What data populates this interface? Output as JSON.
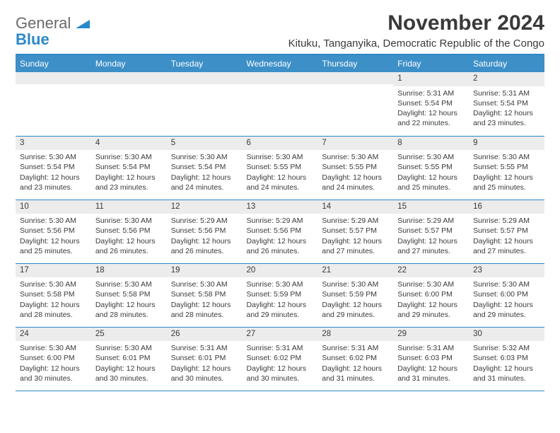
{
  "brand": {
    "word1": "General",
    "word2": "Blue"
  },
  "header": {
    "month_title": "November 2024",
    "location": "Kituku, Tanganyika, Democratic Republic of the Congo"
  },
  "colors": {
    "header_bg": "#3d8fc7",
    "accent_line": "#2a88c9",
    "daynum_bg": "#ececec",
    "text": "#3a3a3a",
    "logo_gray": "#6a6a6a",
    "logo_blue": "#2a88c9",
    "white": "#ffffff"
  },
  "weekdays": [
    "Sunday",
    "Monday",
    "Tuesday",
    "Wednesday",
    "Thursday",
    "Friday",
    "Saturday"
  ],
  "weeks": [
    [
      {
        "num": "",
        "sunrise": "",
        "sunset": "",
        "daylight": ""
      },
      {
        "num": "",
        "sunrise": "",
        "sunset": "",
        "daylight": ""
      },
      {
        "num": "",
        "sunrise": "",
        "sunset": "",
        "daylight": ""
      },
      {
        "num": "",
        "sunrise": "",
        "sunset": "",
        "daylight": ""
      },
      {
        "num": "",
        "sunrise": "",
        "sunset": "",
        "daylight": ""
      },
      {
        "num": "1",
        "sunrise": "Sunrise: 5:31 AM",
        "sunset": "Sunset: 5:54 PM",
        "daylight": "Daylight: 12 hours and 22 minutes."
      },
      {
        "num": "2",
        "sunrise": "Sunrise: 5:31 AM",
        "sunset": "Sunset: 5:54 PM",
        "daylight": "Daylight: 12 hours and 23 minutes."
      }
    ],
    [
      {
        "num": "3",
        "sunrise": "Sunrise: 5:30 AM",
        "sunset": "Sunset: 5:54 PM",
        "daylight": "Daylight: 12 hours and 23 minutes."
      },
      {
        "num": "4",
        "sunrise": "Sunrise: 5:30 AM",
        "sunset": "Sunset: 5:54 PM",
        "daylight": "Daylight: 12 hours and 23 minutes."
      },
      {
        "num": "5",
        "sunrise": "Sunrise: 5:30 AM",
        "sunset": "Sunset: 5:54 PM",
        "daylight": "Daylight: 12 hours and 24 minutes."
      },
      {
        "num": "6",
        "sunrise": "Sunrise: 5:30 AM",
        "sunset": "Sunset: 5:55 PM",
        "daylight": "Daylight: 12 hours and 24 minutes."
      },
      {
        "num": "7",
        "sunrise": "Sunrise: 5:30 AM",
        "sunset": "Sunset: 5:55 PM",
        "daylight": "Daylight: 12 hours and 24 minutes."
      },
      {
        "num": "8",
        "sunrise": "Sunrise: 5:30 AM",
        "sunset": "Sunset: 5:55 PM",
        "daylight": "Daylight: 12 hours and 25 minutes."
      },
      {
        "num": "9",
        "sunrise": "Sunrise: 5:30 AM",
        "sunset": "Sunset: 5:55 PM",
        "daylight": "Daylight: 12 hours and 25 minutes."
      }
    ],
    [
      {
        "num": "10",
        "sunrise": "Sunrise: 5:30 AM",
        "sunset": "Sunset: 5:56 PM",
        "daylight": "Daylight: 12 hours and 25 minutes."
      },
      {
        "num": "11",
        "sunrise": "Sunrise: 5:30 AM",
        "sunset": "Sunset: 5:56 PM",
        "daylight": "Daylight: 12 hours and 26 minutes."
      },
      {
        "num": "12",
        "sunrise": "Sunrise: 5:29 AM",
        "sunset": "Sunset: 5:56 PM",
        "daylight": "Daylight: 12 hours and 26 minutes."
      },
      {
        "num": "13",
        "sunrise": "Sunrise: 5:29 AM",
        "sunset": "Sunset: 5:56 PM",
        "daylight": "Daylight: 12 hours and 26 minutes."
      },
      {
        "num": "14",
        "sunrise": "Sunrise: 5:29 AM",
        "sunset": "Sunset: 5:57 PM",
        "daylight": "Daylight: 12 hours and 27 minutes."
      },
      {
        "num": "15",
        "sunrise": "Sunrise: 5:29 AM",
        "sunset": "Sunset: 5:57 PM",
        "daylight": "Daylight: 12 hours and 27 minutes."
      },
      {
        "num": "16",
        "sunrise": "Sunrise: 5:29 AM",
        "sunset": "Sunset: 5:57 PM",
        "daylight": "Daylight: 12 hours and 27 minutes."
      }
    ],
    [
      {
        "num": "17",
        "sunrise": "Sunrise: 5:30 AM",
        "sunset": "Sunset: 5:58 PM",
        "daylight": "Daylight: 12 hours and 28 minutes."
      },
      {
        "num": "18",
        "sunrise": "Sunrise: 5:30 AM",
        "sunset": "Sunset: 5:58 PM",
        "daylight": "Daylight: 12 hours and 28 minutes."
      },
      {
        "num": "19",
        "sunrise": "Sunrise: 5:30 AM",
        "sunset": "Sunset: 5:58 PM",
        "daylight": "Daylight: 12 hours and 28 minutes."
      },
      {
        "num": "20",
        "sunrise": "Sunrise: 5:30 AM",
        "sunset": "Sunset: 5:59 PM",
        "daylight": "Daylight: 12 hours and 29 minutes."
      },
      {
        "num": "21",
        "sunrise": "Sunrise: 5:30 AM",
        "sunset": "Sunset: 5:59 PM",
        "daylight": "Daylight: 12 hours and 29 minutes."
      },
      {
        "num": "22",
        "sunrise": "Sunrise: 5:30 AM",
        "sunset": "Sunset: 6:00 PM",
        "daylight": "Daylight: 12 hours and 29 minutes."
      },
      {
        "num": "23",
        "sunrise": "Sunrise: 5:30 AM",
        "sunset": "Sunset: 6:00 PM",
        "daylight": "Daylight: 12 hours and 29 minutes."
      }
    ],
    [
      {
        "num": "24",
        "sunrise": "Sunrise: 5:30 AM",
        "sunset": "Sunset: 6:00 PM",
        "daylight": "Daylight: 12 hours and 30 minutes."
      },
      {
        "num": "25",
        "sunrise": "Sunrise: 5:30 AM",
        "sunset": "Sunset: 6:01 PM",
        "daylight": "Daylight: 12 hours and 30 minutes."
      },
      {
        "num": "26",
        "sunrise": "Sunrise: 5:31 AM",
        "sunset": "Sunset: 6:01 PM",
        "daylight": "Daylight: 12 hours and 30 minutes."
      },
      {
        "num": "27",
        "sunrise": "Sunrise: 5:31 AM",
        "sunset": "Sunset: 6:02 PM",
        "daylight": "Daylight: 12 hours and 30 minutes."
      },
      {
        "num": "28",
        "sunrise": "Sunrise: 5:31 AM",
        "sunset": "Sunset: 6:02 PM",
        "daylight": "Daylight: 12 hours and 31 minutes."
      },
      {
        "num": "29",
        "sunrise": "Sunrise: 5:31 AM",
        "sunset": "Sunset: 6:03 PM",
        "daylight": "Daylight: 12 hours and 31 minutes."
      },
      {
        "num": "30",
        "sunrise": "Sunrise: 5:32 AM",
        "sunset": "Sunset: 6:03 PM",
        "daylight": "Daylight: 12 hours and 31 minutes."
      }
    ]
  ]
}
